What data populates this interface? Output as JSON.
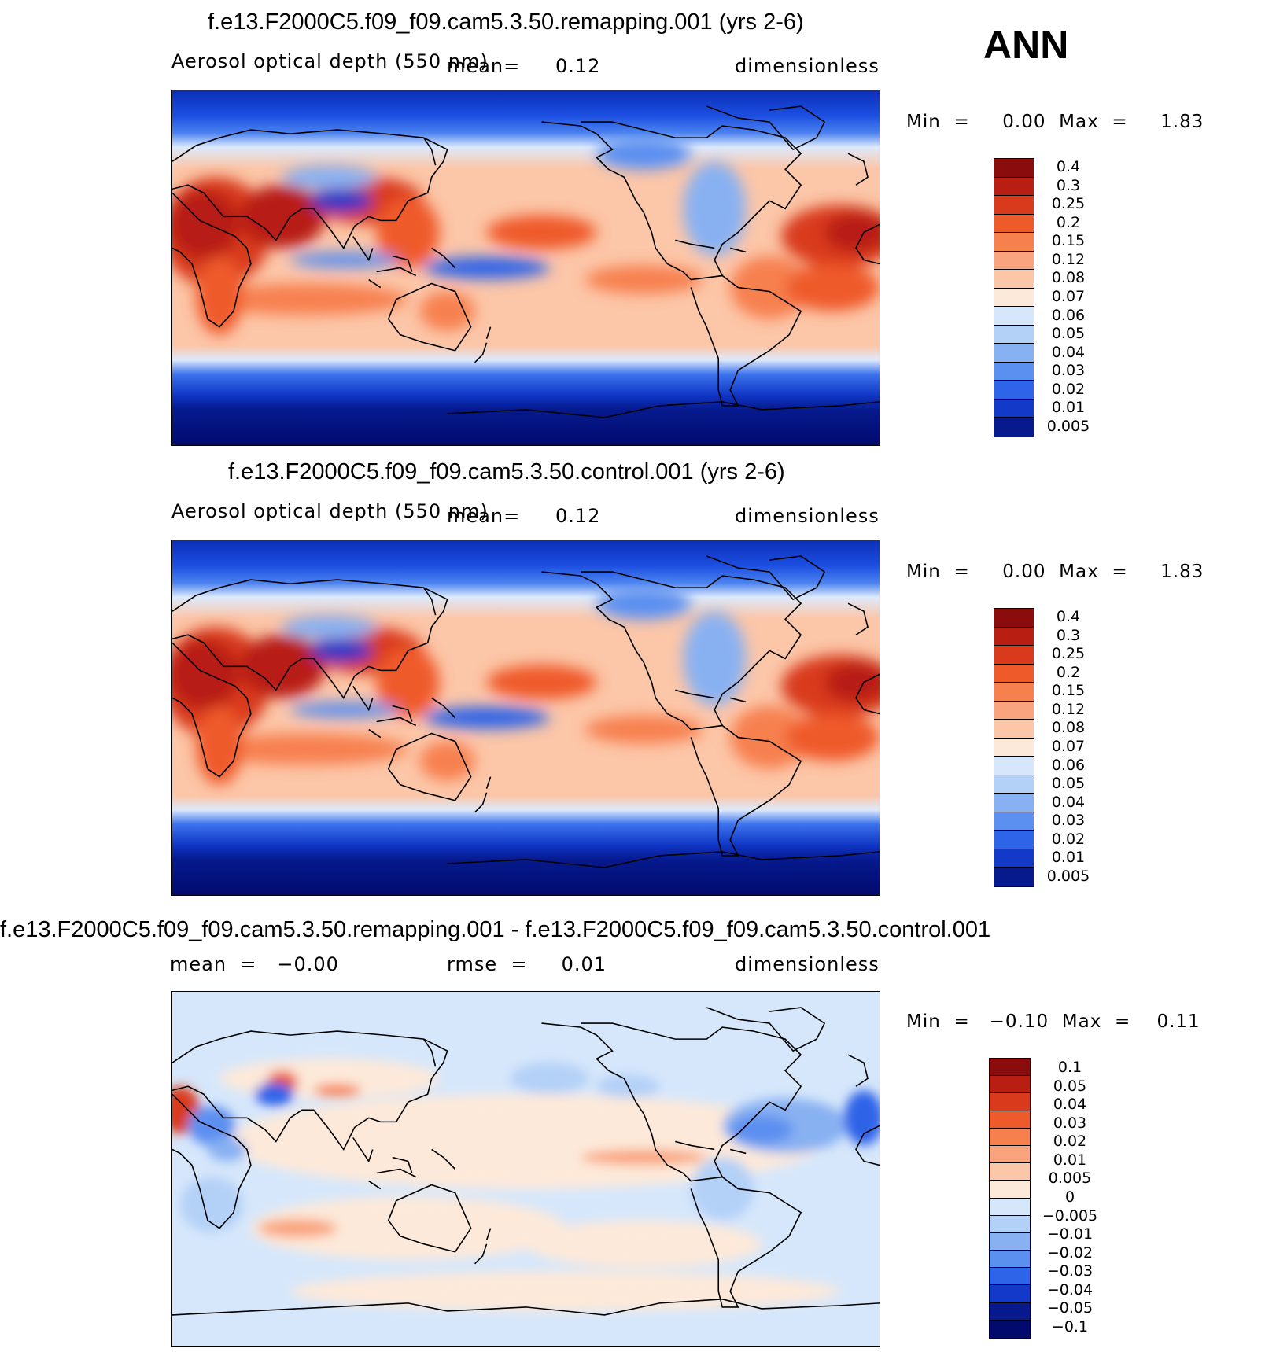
{
  "season": "ANN",
  "panels": [
    {
      "title": "f.e13.F2000C5.f09_f09.cam5.3.50.remapping.001 (yrs 2-6)",
      "variable": "Aerosol optical depth (550 nm)",
      "mean_label": "mean",
      "mean_sep": "=",
      "mean_value": "0.12",
      "units": "dimensionless",
      "min_label": "Min",
      "min_sep": "=",
      "min_value": "0.00",
      "max_label": "Max",
      "max_sep": "=",
      "max_value": "1.83",
      "colorbar_levels": [
        "0.4",
        "0.3",
        "0.25",
        "0.2",
        "0.15",
        "0.12",
        "0.08",
        "0.07",
        "0.06",
        "0.05",
        "0.04",
        "0.03",
        "0.02",
        "0.01",
        "0.005"
      ],
      "colorbar_colors": [
        "#8b0c0c",
        "#b81e12",
        "#d93a1c",
        "#ef5a2b",
        "#f7804f",
        "#f9a47e",
        "#fcc6a8",
        "#fde9d9",
        "#d6e7fb",
        "#b3d0f7",
        "#88b1f2",
        "#5b8ff0",
        "#2e64e8",
        "#1239c8",
        "#061a8e"
      ]
    },
    {
      "title": "f.e13.F2000C5.f09_f09.cam5.3.50.control.001 (yrs 2-6)",
      "variable": "Aerosol optical depth (550 nm)",
      "mean_label": "mean",
      "mean_sep": "=",
      "mean_value": "0.12",
      "units": "dimensionless",
      "min_label": "Min",
      "min_sep": "=",
      "min_value": "0.00",
      "max_label": "Max",
      "max_sep": "=",
      "max_value": "1.83",
      "colorbar_levels": [
        "0.4",
        "0.3",
        "0.25",
        "0.2",
        "0.15",
        "0.12",
        "0.08",
        "0.07",
        "0.06",
        "0.05",
        "0.04",
        "0.03",
        "0.02",
        "0.01",
        "0.005"
      ],
      "colorbar_colors": [
        "#8b0c0c",
        "#b81e12",
        "#d93a1c",
        "#ef5a2b",
        "#f7804f",
        "#f9a47e",
        "#fcc6a8",
        "#fde9d9",
        "#d6e7fb",
        "#b3d0f7",
        "#88b1f2",
        "#5b8ff0",
        "#2e64e8",
        "#1239c8",
        "#061a8e"
      ]
    },
    {
      "title": "f.e13.F2000C5.f09_f09.cam5.3.50.remapping.001 - f.e13.F2000C5.f09_f09.cam5.3.50.control.001",
      "mean_label": "mean",
      "mean_sep": "=",
      "mean_value": "−0.00",
      "rmse_label": "rmse",
      "rmse_sep": "=",
      "rmse_value": "0.01",
      "units": "dimensionless",
      "min_label": "Min",
      "min_sep": "=",
      "min_value": "−0.10",
      "max_label": "Max",
      "max_sep": "=",
      "max_value": "0.11",
      "colorbar_levels": [
        "0.1",
        "0.05",
        "0.04",
        "0.03",
        "0.02",
        "0.01",
        "0.005",
        "0",
        "−0.005",
        "−0.01",
        "−0.02",
        "−0.03",
        "−0.04",
        "−0.05",
        "−0.1"
      ],
      "colorbar_colors": [
        "#8b0c0c",
        "#b81e12",
        "#d93a1c",
        "#ef5a2b",
        "#f7804f",
        "#f9a47e",
        "#fcc6a8",
        "#fde9d9",
        "#d6e7fb",
        "#b3d0f7",
        "#88b1f2",
        "#5b8ff0",
        "#2e64e8",
        "#1239c8",
        "#061a8e",
        "#020a6e"
      ]
    }
  ]
}
